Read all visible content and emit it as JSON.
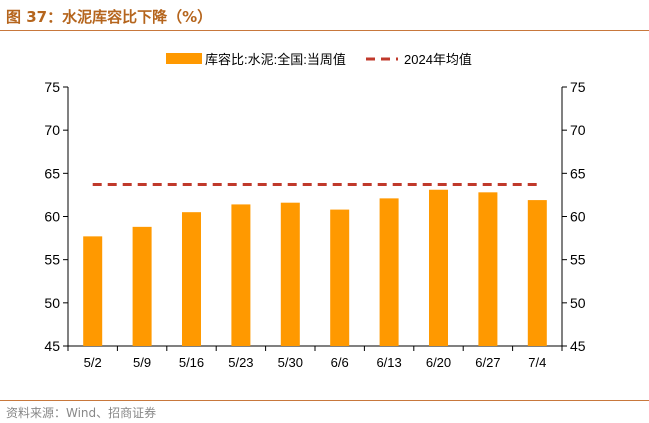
{
  "title": "图 37：水泥库容比下降（%）",
  "source": "资料来源：Wind、招商证券",
  "colors": {
    "bar": "#FF9900",
    "avg": "#C0392B",
    "axis": "#000000",
    "title": "#B5651D"
  },
  "chart_data": {
    "type": "bar",
    "title": "水泥库容比下降（%）",
    "categories": [
      "5/2",
      "5/9",
      "5/16",
      "5/23",
      "5/30",
      "6/6",
      "6/13",
      "6/20",
      "6/27",
      "7/4"
    ],
    "series": [
      {
        "name": "库容比:水泥:全国:当周值",
        "type": "bar",
        "values": [
          57.7,
          58.8,
          60.5,
          61.4,
          61.6,
          60.8,
          62.1,
          63.1,
          62.8,
          61.9
        ]
      },
      {
        "name": "2024年均值",
        "type": "line-dashed",
        "values": [
          63.7,
          63.7,
          63.7,
          63.7,
          63.7,
          63.7,
          63.7,
          63.7,
          63.7,
          63.7
        ]
      }
    ],
    "ylim": [
      45,
      75
    ],
    "yticks": [
      45,
      50,
      55,
      60,
      65,
      70,
      75
    ],
    "y2lim": [
      45,
      75
    ],
    "legend": "top-center",
    "grid": false,
    "xlabel": "",
    "ylabel": ""
  }
}
